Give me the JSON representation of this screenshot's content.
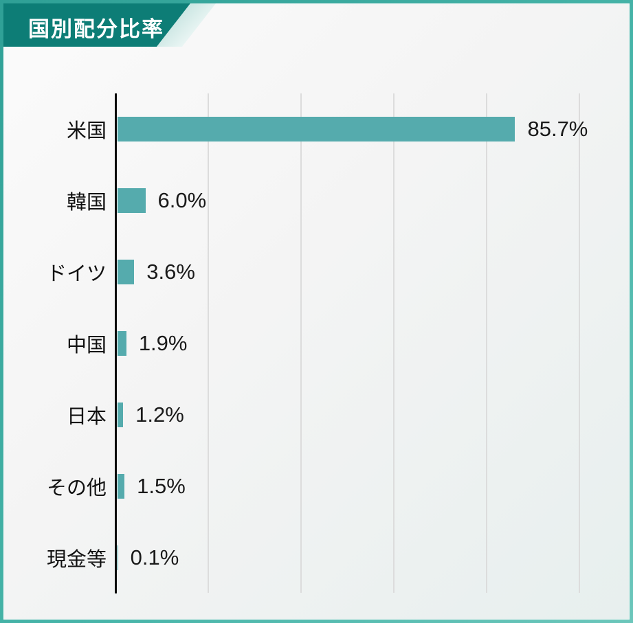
{
  "header": {
    "title": "国別配分比率"
  },
  "colors": {
    "frame_border": "#2fa096",
    "ribbon": "#0d7d76",
    "bar": "#55abad",
    "axis": "#0c0c0c",
    "gridline": "#dcdcdc",
    "title_text": "#ffffff",
    "label_text": "#111111"
  },
  "chart_data": {
    "type": "bar",
    "orientation": "horizontal",
    "title": "国別配分比率",
    "categories": [
      "米国",
      "韓国",
      "ドイツ",
      "中国",
      "日本",
      "その他",
      "現金等"
    ],
    "values": [
      85.7,
      6.0,
      3.6,
      1.9,
      1.2,
      1.5,
      0.1
    ],
    "value_labels": [
      "85.7%",
      "6.0%",
      "3.6%",
      "1.9%",
      "1.2%",
      "1.5%",
      "0.1%"
    ],
    "unit": "%",
    "xlabel": "",
    "ylabel": "",
    "xlim": [
      0,
      100
    ],
    "gridline_ticks": [
      20,
      40,
      60,
      80,
      100
    ],
    "grid": true,
    "legend": false
  }
}
